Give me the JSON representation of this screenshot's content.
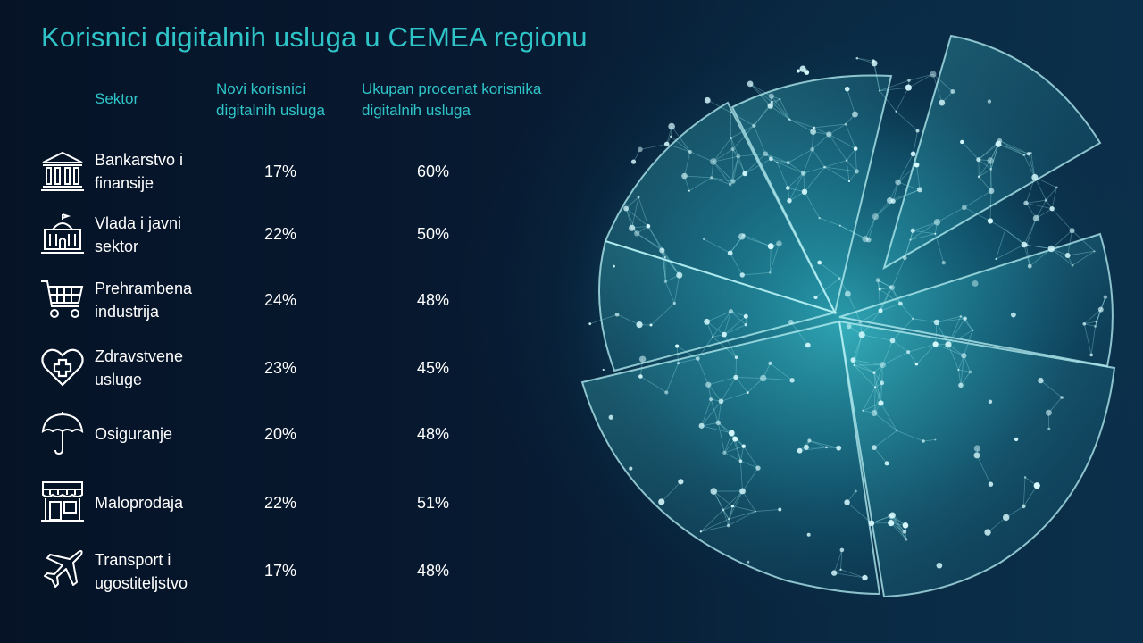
{
  "title": "Korisnici digitalnih usluga u CEMEA regionu",
  "headers": {
    "sector": "Sektor",
    "new_users": "Novi korisnici digitalnih usluga",
    "total_pct": "Ukupan procenat korisnika digitalnih usluga"
  },
  "colors": {
    "accent": "#2ec4c8",
    "text": "#ffffff",
    "background": "#071a31"
  },
  "rows": [
    {
      "icon": "bank-icon",
      "sector": "Bankarstvo i finansije",
      "new_users": "17%",
      "total_pct": "60%"
    },
    {
      "icon": "government-building-icon",
      "sector": "Vlada i javni sektor",
      "new_users": "22%",
      "total_pct": "50%"
    },
    {
      "icon": "shopping-cart-icon",
      "sector": "Prehrambena industrija",
      "new_users": "24%",
      "total_pct": "48%"
    },
    {
      "icon": "heart-medical-icon",
      "sector": "Zdravstvene usluge",
      "new_users": "23%",
      "total_pct": "45%"
    },
    {
      "icon": "umbrella-icon",
      "sector": "Osiguranje",
      "new_users": "20%",
      "total_pct": "48%"
    },
    {
      "icon": "storefront-icon",
      "sector": "Maloprodaja",
      "new_users": "22%",
      "total_pct": "51%"
    },
    {
      "icon": "airplane-icon",
      "sector": "Transport i ugostiteljstvo",
      "new_users": "17%",
      "total_pct": "48%"
    }
  ],
  "chart_data": {
    "type": "table",
    "title": "Korisnici digitalnih usluga u CEMEA regionu",
    "columns": [
      "Sektor",
      "Novi korisnici digitalnih usluga",
      "Ukupan procenat korisnika digitalnih usluga"
    ],
    "categories": [
      "Bankarstvo i finansije",
      "Vlada i javni sektor",
      "Prehrambena industrija",
      "Zdravstvene usluge",
      "Osiguranje",
      "Maloprodaja",
      "Transport i ugostiteljstvo"
    ],
    "series": [
      {
        "name": "Novi korisnici digitalnih usluga",
        "values": [
          17,
          22,
          24,
          23,
          20,
          22,
          17
        ]
      },
      {
        "name": "Ukupan procenat korisnika digitalnih usluga",
        "values": [
          60,
          50,
          48,
          45,
          48,
          51,
          48
        ]
      }
    ],
    "unit": "%"
  }
}
